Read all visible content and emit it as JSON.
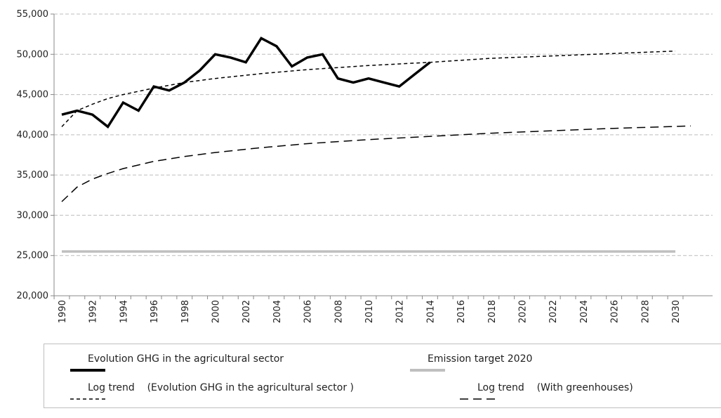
{
  "chart_data": {
    "type": "line",
    "title": "",
    "xlabel": "",
    "ylabel": "",
    "ylim": [
      20000,
      55000
    ],
    "y_ticks": [
      "20,000",
      "25,000",
      "30,000",
      "35,000",
      "40,000",
      "45,000",
      "50,000",
      "55,000"
    ],
    "x_range": [
      1990,
      2031
    ],
    "x_ticks": [
      "1990",
      "1992",
      "1994",
      "1996",
      "1998",
      "2000",
      "2002",
      "2004",
      "2006",
      "2008",
      "2010",
      "2012",
      "2014",
      "2016",
      "2018",
      "2020",
      "2022",
      "2024",
      "2026",
      "2028",
      "2030"
    ],
    "grid": "horizontal dashed",
    "legend_position": "bottom",
    "series": [
      {
        "name": "Evolution GHG in the agricultural sector",
        "color": "#000000",
        "style": "solid-thick",
        "x": [
          1990,
          1991,
          1992,
          1993,
          1994,
          1995,
          1996,
          1997,
          1998,
          1999,
          2000,
          2001,
          2002,
          2003,
          2004,
          2005,
          2006,
          2007,
          2008,
          2009,
          2010,
          2011,
          2012,
          2013,
          2014
        ],
        "y": [
          42500,
          43000,
          42500,
          41000,
          44000,
          43000,
          46000,
          45500,
          46500,
          48000,
          50000,
          49600,
          49000,
          52000,
          51000,
          48500,
          49600,
          50000,
          47000,
          46500,
          47000,
          46500,
          46000,
          47500,
          49000
        ]
      },
      {
        "name": "Emission target 2020",
        "color": "#bfbfbf",
        "style": "solid-gray",
        "x": [
          1990,
          2030
        ],
        "y": [
          25500,
          25500
        ]
      },
      {
        "name": "Log trend    (Evolution GHG in the agricultural sector )",
        "color": "#000000",
        "style": "short-dash",
        "x": [
          1990,
          1991,
          1992,
          1993,
          1994,
          1996,
          1998,
          2000,
          2003,
          2006,
          2010,
          2014,
          2018,
          2022,
          2026,
          2030
        ],
        "y": [
          41000,
          43000,
          43800,
          44500,
          45000,
          45800,
          46500,
          47000,
          47600,
          48100,
          48600,
          49000,
          49500,
          49800,
          50100,
          50400
        ]
      },
      {
        "name": "Log trend    (With greenhouses)",
        "color": "#000000",
        "style": "long-dash",
        "x": [
          1990,
          1991,
          1992,
          1993,
          1994,
          1996,
          1998,
          2000,
          2003,
          2006,
          2010,
          2014,
          2018,
          2022,
          2026,
          2031
        ],
        "y": [
          31700,
          33500,
          34500,
          35200,
          35800,
          36700,
          37300,
          37800,
          38400,
          38900,
          39400,
          39800,
          40200,
          40500,
          40800,
          41100
        ]
      }
    ]
  }
}
